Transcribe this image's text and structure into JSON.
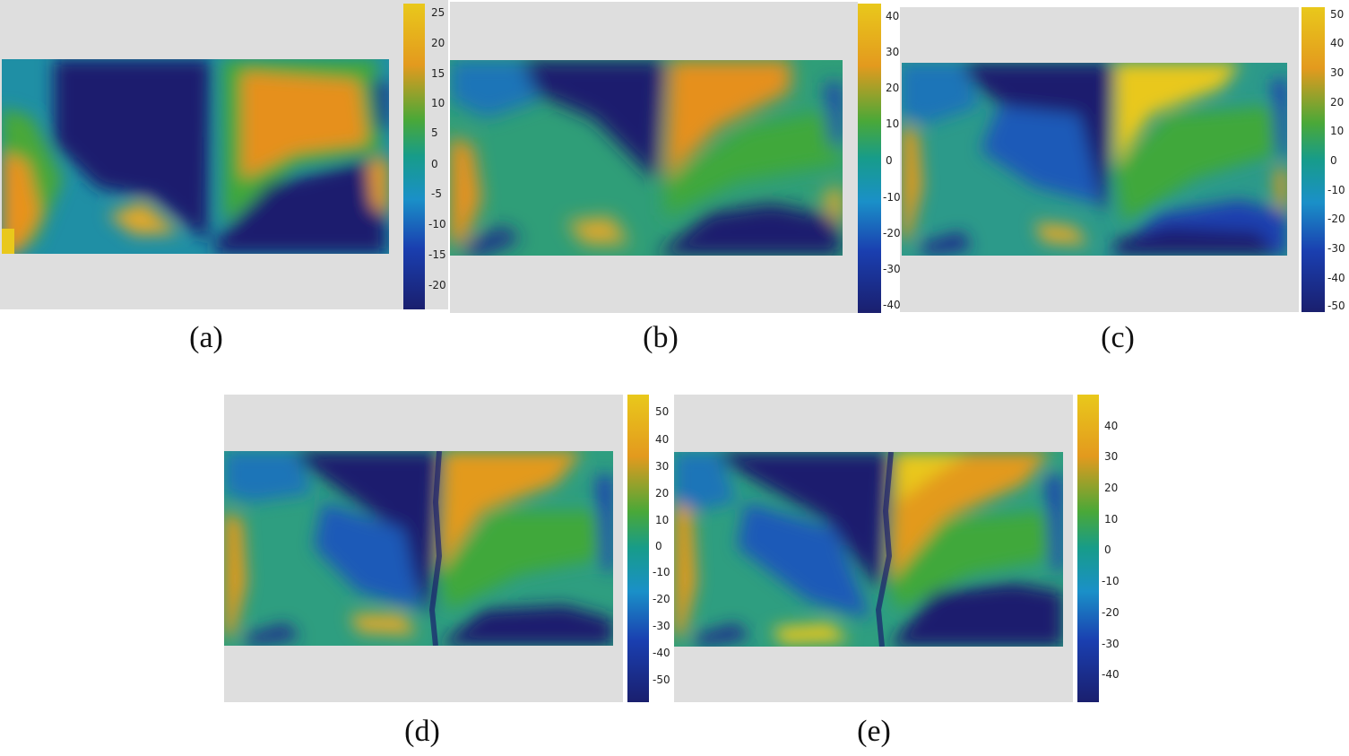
{
  "figure": {
    "panels": [
      {
        "caption": "(a)",
        "colorbar_ticks": [
          "25",
          "20",
          "15",
          "10",
          "5",
          "0",
          "-5",
          "-10",
          "-15",
          "-20"
        ],
        "range": [
          -24,
          27
        ]
      },
      {
        "caption": "(b)",
        "colorbar_ticks": [
          "40",
          "30",
          "20",
          "10",
          "0",
          "-10",
          "-20",
          "-30",
          "-40"
        ],
        "range": [
          -42,
          44
        ]
      },
      {
        "caption": "(c)",
        "colorbar_ticks": [
          "50",
          "40",
          "30",
          "20",
          "10",
          "0",
          "-10",
          "-20",
          "-30",
          "-40",
          "-50"
        ],
        "range": [
          -52,
          52
        ]
      },
      {
        "caption": "(d)",
        "colorbar_ticks": [
          "50",
          "40",
          "30",
          "20",
          "10",
          "0",
          "-10",
          "-20",
          "-30",
          "-40",
          "-50"
        ],
        "range": [
          -58,
          56
        ]
      },
      {
        "caption": "(e)",
        "colorbar_ticks": [
          "40",
          "30",
          "20",
          "10",
          "0",
          "-10",
          "-20",
          "-30",
          "-40"
        ],
        "range": [
          -49,
          49
        ]
      }
    ],
    "colormap": [
      "#1a1f6e",
      "#1a3fb0",
      "#1a90c8",
      "#179c8a",
      "#4aa838",
      "#e39a1e",
      "#e9c81b"
    ]
  }
}
